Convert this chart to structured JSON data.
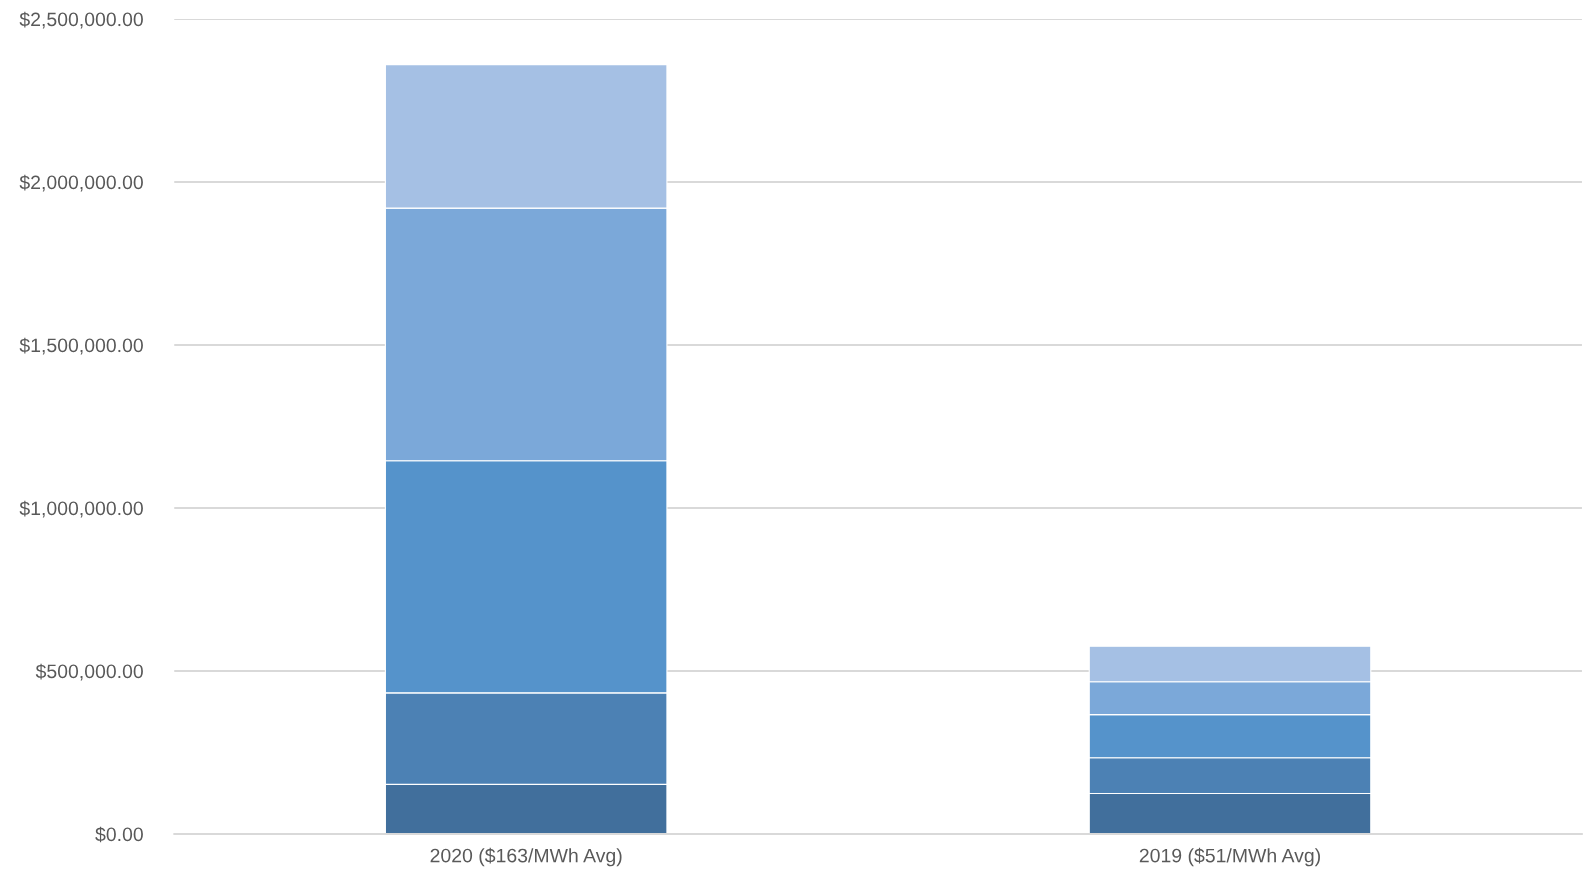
{
  "chart_data": {
    "type": "bar",
    "stacked": true,
    "categories": [
      "2020 ($163/MWh Avg)",
      "2019 ($51/MWh Avg)"
    ],
    "series": [
      {
        "color": "#416f9c",
        "values": [
          152000,
          124000
        ]
      },
      {
        "color": "#4c81b4",
        "values": [
          281000,
          110000
        ]
      },
      {
        "color": "#5593cb",
        "values": [
          712000,
          132000
        ]
      },
      {
        "color": "#7ba8d9",
        "values": [
          775000,
          101000
        ]
      },
      {
        "color": "#a5c0e4",
        "values": [
          440000,
          109000
        ]
      }
    ],
    "ylim": [
      0,
      2500000
    ],
    "yticks": [
      {
        "value": 0,
        "label": "$0.00"
      },
      {
        "value": 500000,
        "label": "$500,000.00"
      },
      {
        "value": 1000000,
        "label": "$1,000,000.00"
      },
      {
        "value": 1500000,
        "label": "$1,500,000.00"
      },
      {
        "value": 2000000,
        "label": "$2,000,000.00"
      },
      {
        "value": 2500000,
        "label": "$2,500,000.00"
      }
    ],
    "grid": "y"
  }
}
